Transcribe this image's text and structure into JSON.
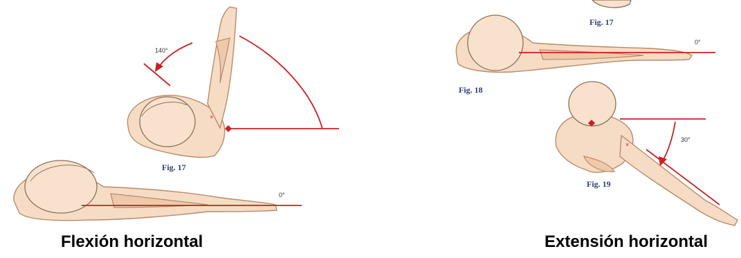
{
  "figures": {
    "left_top": {
      "label": "Fig. 17",
      "angle": "140°"
    },
    "left_bottom": {
      "angle": "0°"
    },
    "right_top": {
      "label": "Fig. 17",
      "angle": "0°"
    },
    "right_middle": {
      "label": "Fig. 18"
    },
    "right_bottom": {
      "label": "Fig. 19",
      "angle": "30°"
    }
  },
  "captions": {
    "left": "Flexión horizontal",
    "right": "Extensión horizontal"
  },
  "colors": {
    "angle_lines": "#cc1f1f",
    "skin": "#f6dcc4",
    "figure_labels": "#2f3f70"
  }
}
